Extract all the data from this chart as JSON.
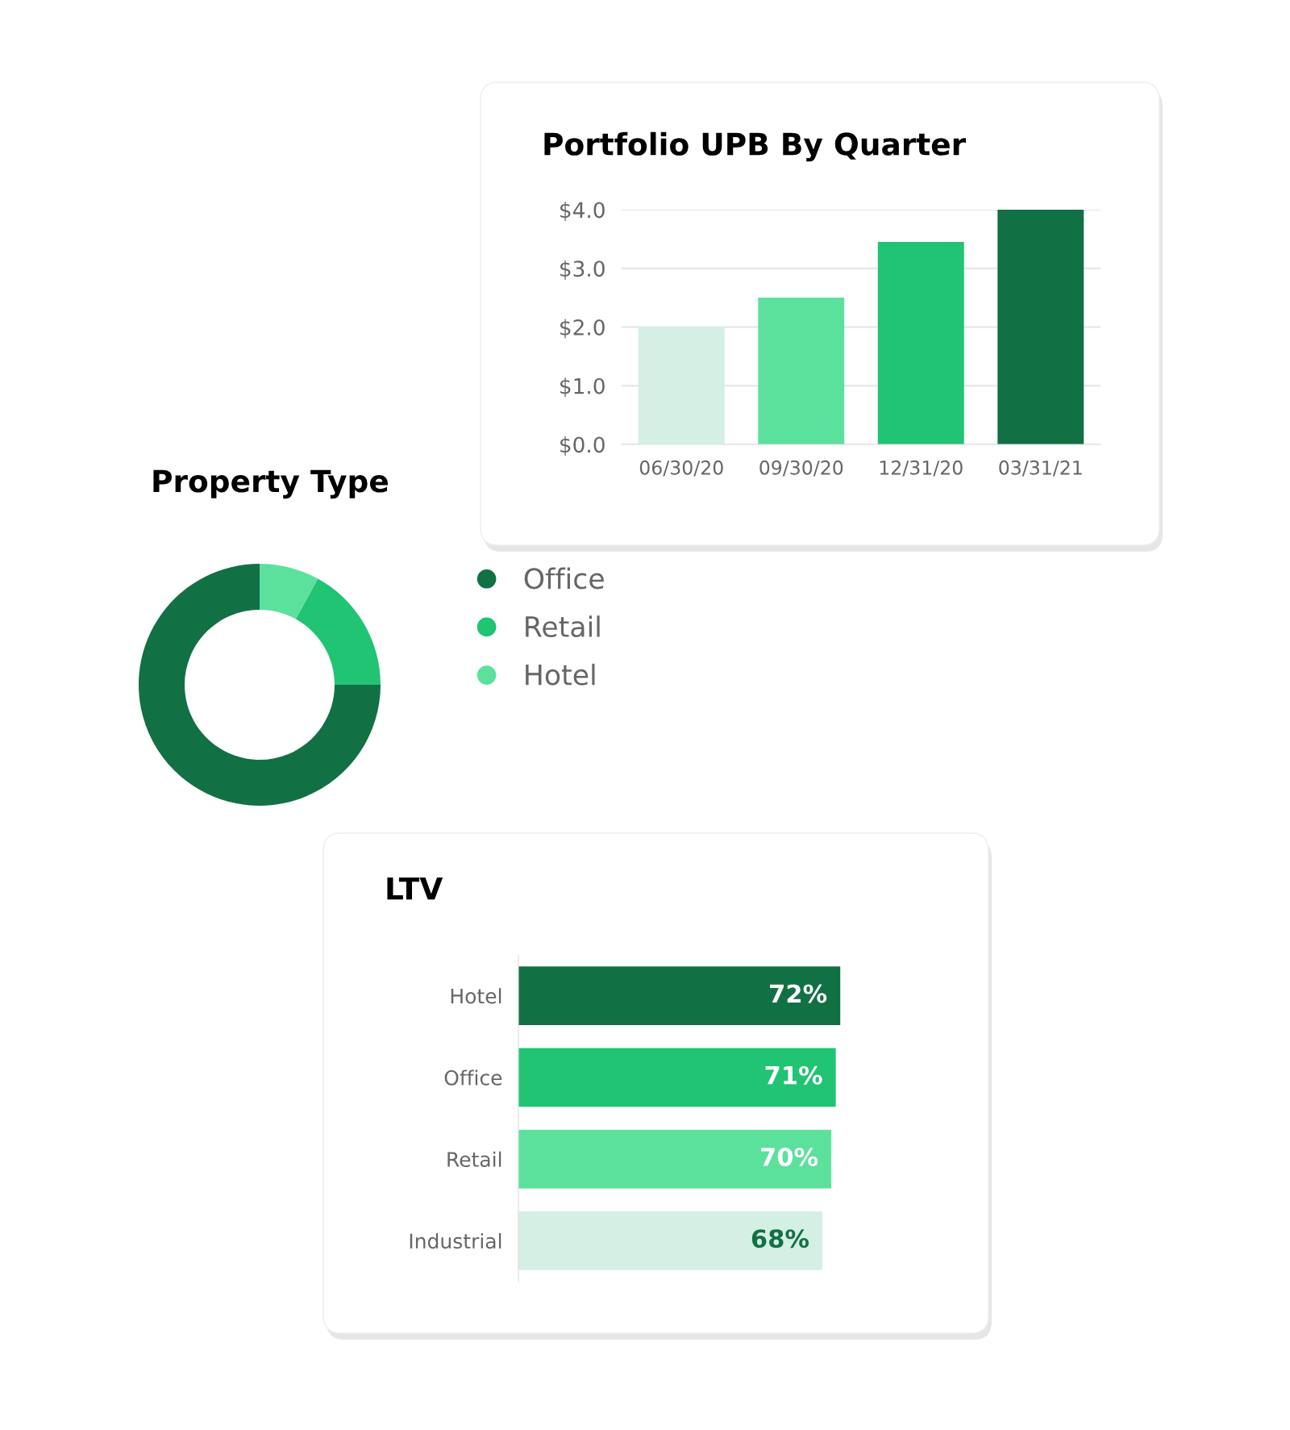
{
  "chart_data": [
    {
      "type": "bar",
      "title": "Portfolio UPB By Quarter",
      "categories": [
        "06/30/20",
        "09/30/20",
        "12/31/20",
        "03/31/21"
      ],
      "values": [
        2.0,
        2.5,
        3.45,
        4.0
      ],
      "colors": [
        "#d4efe3",
        "#5ce19d",
        "#20c473",
        "#127045"
      ],
      "ylim": [
        0,
        4
      ],
      "yticks": [
        {
          "value": 0,
          "label": "$0.0"
        },
        {
          "value": 1,
          "label": "$1.0"
        },
        {
          "value": 2,
          "label": "$2.0"
        },
        {
          "value": 3,
          "label": "$3.0"
        },
        {
          "value": 4,
          "label": "$4.0"
        }
      ],
      "grid": "y"
    },
    {
      "type": "donut",
      "title": "Property Type",
      "categories": [
        "Office",
        "Retail",
        "Hotel"
      ],
      "values": [
        75,
        17,
        8
      ],
      "colors": [
        "#127045",
        "#20c473",
        "#5ce19d"
      ],
      "legend": "right"
    },
    {
      "type": "bar",
      "orientation": "horizontal",
      "title": "LTV",
      "categories": [
        "Hotel",
        "Office",
        "Retail",
        "Industrial"
      ],
      "values": [
        72,
        71,
        70,
        68
      ],
      "colors": [
        "#127045",
        "#20c473",
        "#5ce19d",
        "#d4efe3"
      ],
      "value_labels": [
        "72%",
        "71%",
        "70%",
        "68%"
      ],
      "tick_labels": "y"
    }
  ]
}
